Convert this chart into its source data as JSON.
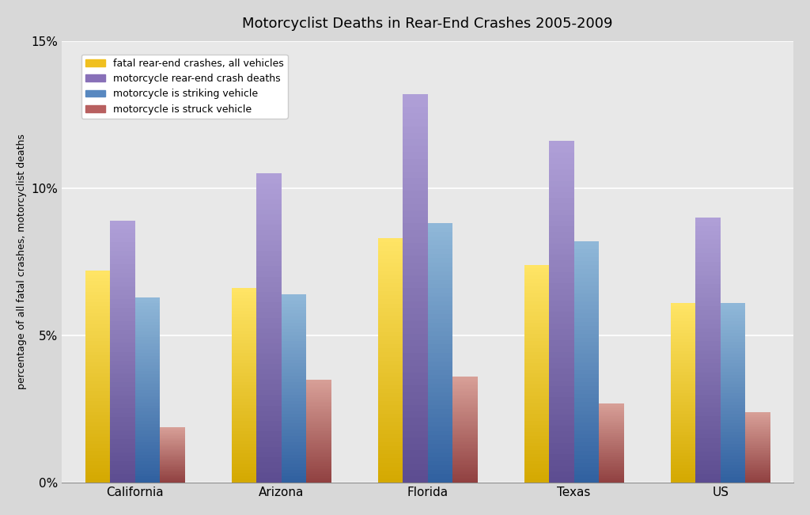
{
  "title": "Motorcyclist Deaths in Rear-End Crashes 2005-2009",
  "categories": [
    "California",
    "Arizona",
    "Florida",
    "Texas",
    "US"
  ],
  "series_order": [
    "fatal_rear_end_all",
    "motorcycle_rear_end_deaths",
    "motorcycle_striking",
    "motorcycle_struck"
  ],
  "series": {
    "fatal_rear_end_all": {
      "label": "fatal rear-end crashes, all vehicles",
      "values": [
        7.2,
        6.6,
        8.3,
        7.4,
        6.1
      ],
      "color_top": "#FFE566",
      "color_bottom": "#D4A800",
      "legend_color": "#F0C020"
    },
    "motorcycle_rear_end_deaths": {
      "label": "motorcycle rear-end crash deaths",
      "values": [
        8.9,
        10.5,
        13.2,
        11.6,
        9.0
      ],
      "color_top": "#B0A0D8",
      "color_bottom": "#5C4C90",
      "legend_color": "#8870B8"
    },
    "motorcycle_striking": {
      "label": "motorcycle is striking vehicle",
      "values": [
        6.3,
        6.4,
        8.8,
        8.2,
        6.1
      ],
      "color_top": "#90B8D8",
      "color_bottom": "#3060A0",
      "legend_color": "#5888C0"
    },
    "motorcycle_struck": {
      "label": "motorcycle is struck vehicle",
      "values": [
        1.9,
        3.5,
        3.6,
        2.7,
        2.4
      ],
      "color_top": "#D8A098",
      "color_bottom": "#904040",
      "legend_color": "#B86060"
    }
  },
  "ylabel": "percentage of all fatal crashes, motorcyclist deaths",
  "ylim": [
    0,
    15
  ],
  "yticks": [
    0,
    5,
    10,
    15
  ],
  "ytick_labels": [
    "0%",
    "5%",
    "10%",
    "15%"
  ],
  "bg_color": "#D8D8D8",
  "plot_bg_color": "#E8E8E8",
  "title_fontsize": 13,
  "axis_label_fontsize": 9,
  "legend_fontsize": 9,
  "bar_width": 0.17,
  "n_gradient_steps": 60
}
